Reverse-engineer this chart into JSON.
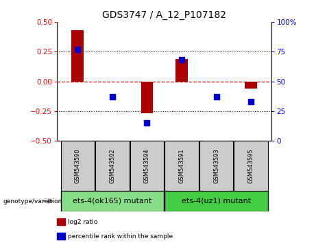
{
  "title": "GDS3747 / A_12_P107182",
  "categories": [
    "GSM543590",
    "GSM543592",
    "GSM543594",
    "GSM543591",
    "GSM543593",
    "GSM543595"
  ],
  "log2_ratio": [
    0.43,
    0.0,
    -0.27,
    0.19,
    0.0,
    -0.06
  ],
  "percentile_rank": [
    0.77,
    0.37,
    0.15,
    0.68,
    0.37,
    0.33
  ],
  "bar_color": "#aa0000",
  "dot_color": "#0000cc",
  "ylim_left": [
    -0.5,
    0.5
  ],
  "ylim_right": [
    0,
    100
  ],
  "yticks_left": [
    -0.5,
    -0.25,
    0,
    0.25,
    0.5
  ],
  "yticks_right": [
    0,
    25,
    50,
    75,
    100
  ],
  "hline_color": "#cc0000",
  "dotline_color": "black",
  "box_color": "#cccccc",
  "group1_label": "ets-4(ok165) mutant",
  "group2_label": "ets-4(uz1) mutant",
  "group1_color": "#88dd88",
  "group2_color": "#44cc44",
  "group1_indices": [
    0,
    1,
    2
  ],
  "group2_indices": [
    3,
    4,
    5
  ],
  "legend_log2": "log2 ratio",
  "legend_pct": "percentile rank within the sample",
  "genotype_label": "genotype/variation",
  "bar_width": 0.35,
  "dot_size": 35,
  "title_fontsize": 10,
  "tick_fontsize": 7.5,
  "label_fontsize": 7,
  "group_fontsize": 8
}
